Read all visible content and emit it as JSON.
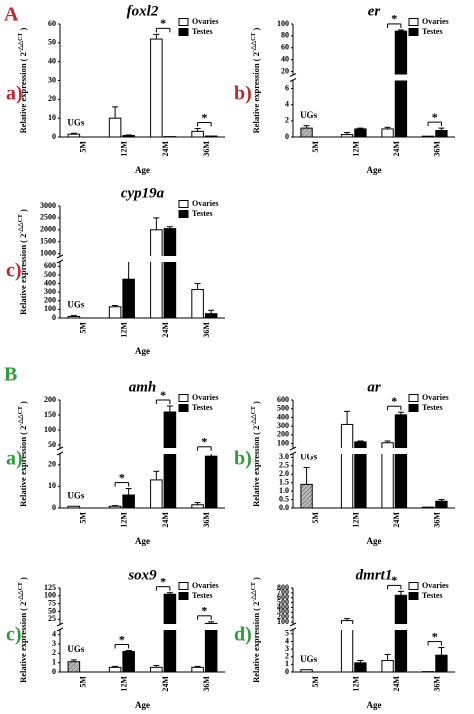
{
  "sections": [
    {
      "label": "A"
    },
    {
      "label": "B"
    }
  ],
  "chart_data": [
    {
      "type": "bar",
      "title": "foxl2",
      "panel_label": "a)",
      "categories": [
        "5M",
        "12M",
        "24M",
        "36M"
      ],
      "xlabel": "Age",
      "ylabel": "Relative expression ( 2",
      "ylabel_sup": "-△△CT",
      "ylabel_end": " )",
      "ylim": [
        0,
        60
      ],
      "yticks": [
        0,
        10,
        20,
        30,
        40,
        50,
        60
      ],
      "legend_position": "top-right",
      "significance": [
        null,
        null,
        "*",
        "*"
      ],
      "series": [
        {
          "name": "UGs",
          "legend": false,
          "hatch": false,
          "color": "#ffffff",
          "values": [
            1.5,
            null,
            null,
            null
          ],
          "errors": [
            0.5,
            null,
            null,
            null
          ]
        },
        {
          "name": "Ovaries",
          "color": "#ffffff",
          "values": [
            null,
            10,
            52,
            3
          ],
          "errors": [
            null,
            6,
            2.5,
            1.5
          ]
        },
        {
          "name": "Testes",
          "color": "#000000",
          "values": [
            null,
            0.8,
            0.2,
            0.5
          ],
          "errors": [
            null,
            0.3,
            null,
            null
          ]
        }
      ]
    },
    {
      "type": "bar",
      "title": "er",
      "panel_label": "b)",
      "categories": [
        "5M",
        "12M",
        "24M",
        "36M"
      ],
      "xlabel": "Age",
      "ylabel": "Relative expression ( 2",
      "ylabel_sup": "-△△CT",
      "ylabel_end": " )",
      "ylim": [
        0,
        100
      ],
      "yticks": [
        0,
        2,
        4,
        6,
        20,
        40,
        60,
        80,
        100
      ],
      "ybreak": [
        7,
        15
      ],
      "legend_position": "top-right",
      "significance": [
        null,
        null,
        "*",
        "*"
      ],
      "series": [
        {
          "name": "UGs",
          "legend": false,
          "hatch": true,
          "color": "#bbbbbb",
          "values": [
            1.1,
            null,
            null,
            null
          ],
          "errors": [
            0.3,
            null,
            null,
            null
          ]
        },
        {
          "name": "Ovaries",
          "color": "#ffffff",
          "values": [
            null,
            0.3,
            1.0,
            0.1
          ],
          "errors": [
            null,
            0.25,
            0.2,
            null
          ]
        },
        {
          "name": "Testes",
          "color": "#000000",
          "values": [
            null,
            1.0,
            88,
            0.8
          ],
          "errors": [
            null,
            0.1,
            2,
            0.3
          ]
        }
      ]
    },
    {
      "type": "bar",
      "title": "cyp19a",
      "panel_label": "c)",
      "categories": [
        "5M",
        "12M",
        "24M",
        "36M"
      ],
      "xlabel": "Age",
      "ylabel": "Relative expression ( 2",
      "ylabel_sup": "-△△CT",
      "ylabel_end": " )",
      "ylim": [
        0,
        3000
      ],
      "yticks": [
        0,
        100,
        200,
        300,
        400,
        500,
        600,
        1000,
        1500,
        2000,
        2500,
        3000
      ],
      "ybreak": [
        650,
        900
      ],
      "legend_position": "top-right",
      "significance": [
        null,
        null,
        null,
        null
      ],
      "series": [
        {
          "name": "UGs",
          "legend": false,
          "hatch": false,
          "color": "#ffffff",
          "values": [
            18,
            null,
            null,
            null
          ],
          "errors": [
            10,
            null,
            null,
            null
          ]
        },
        {
          "name": "Ovaries",
          "color": "#ffffff",
          "values": [
            null,
            130,
            2000,
            330
          ],
          "errors": [
            null,
            15,
            500,
            70
          ]
        },
        {
          "name": "Testes",
          "color": "#000000",
          "values": [
            null,
            450,
            2050,
            50
          ],
          "errors": [
            null,
            420,
            80,
            40
          ]
        }
      ]
    },
    {
      "type": "bar",
      "title": "amh",
      "panel_label": "a)",
      "categories": [
        "5M",
        "12M",
        "24M",
        "36M"
      ],
      "xlabel": "Age",
      "ylabel": "Relative expression ( 2",
      "ylabel_sup": "-△△CT",
      "ylabel_end": " )",
      "ylim": [
        0,
        200
      ],
      "yticks": [
        0,
        10,
        20,
        50,
        100,
        150,
        200
      ],
      "ybreak": [
        25,
        40
      ],
      "legend_position": "top-right",
      "significance": [
        null,
        "*",
        "*",
        "*"
      ],
      "series": [
        {
          "name": "UGs",
          "legend": false,
          "hatch": false,
          "color": "#ffffff",
          "values": [
            0.8,
            null,
            null,
            null
          ],
          "errors": [
            null,
            null,
            null,
            null
          ]
        },
        {
          "name": "Ovaries",
          "color": "#ffffff",
          "values": [
            null,
            0.8,
            13,
            1.5
          ],
          "errors": [
            null,
            0.3,
            4,
            1
          ]
        },
        {
          "name": "Testes",
          "color": "#000000",
          "values": [
            null,
            6,
            160,
            24
          ],
          "errors": [
            null,
            3,
            20,
            4
          ]
        }
      ]
    },
    {
      "type": "bar",
      "title": "ar",
      "panel_label": "b)",
      "categories": [
        "5M",
        "12M",
        "24M",
        "36M"
      ],
      "xlabel": "Age",
      "ylabel": "Relative expression ( 2",
      "ylabel_sup": "-△△CT",
      "ylabel_end": " )",
      "ylim": [
        0,
        600
      ],
      "yticks": [
        {
          "value": 0,
          "label": "0.0"
        },
        0.5,
        {
          "value": 1,
          "label": "1.0"
        },
        1.5,
        {
          "value": 2,
          "label": "2.0"
        },
        2.5,
        {
          "value": 3,
          "label": "3.0"
        },
        100,
        200,
        300,
        400,
        500,
        600
      ],
      "ybreak": [
        3.2,
        50
      ],
      "legend_position": "top-right",
      "significance": [
        null,
        null,
        "*",
        null
      ],
      "series": [
        {
          "name": "UGs",
          "legend": false,
          "hatch": true,
          "color": "#bbbbbb",
          "values": [
            1.4,
            null,
            null,
            null
          ],
          "errors": [
            1,
            null,
            null,
            null
          ]
        },
        {
          "name": "Ovaries",
          "color": "#ffffff",
          "values": [
            null,
            320,
            110,
            0.05
          ],
          "errors": [
            null,
            150,
            20,
            null
          ]
        },
        {
          "name": "Testes",
          "color": "#000000",
          "values": [
            null,
            120,
            430,
            0.4
          ],
          "errors": [
            null,
            10,
            30,
            0.1
          ]
        }
      ]
    },
    {
      "type": "bar",
      "title": "sox9",
      "panel_label": "c)",
      "categories": [
        "5M",
        "12M",
        "24M",
        "36M"
      ],
      "xlabel": "Age",
      "ylabel": "Relative expression ( 2",
      "ylabel_sup": "-△△CT",
      "ylabel_end": " )",
      "ylim": [
        0,
        125
      ],
      "yticks": [
        0,
        1,
        2,
        3,
        4,
        25,
        50,
        75,
        100,
        125
      ],
      "ybreak": [
        4.5,
        10
      ],
      "legend_position": "top-right",
      "significance": [
        null,
        "*",
        "*",
        "*"
      ],
      "series": [
        {
          "name": "UGs",
          "legend": false,
          "hatch": true,
          "color": "#bbbbbb",
          "values": [
            1.1,
            null,
            null,
            null
          ],
          "errors": [
            0.2,
            null,
            null,
            null
          ]
        },
        {
          "name": "Ovaries",
          "color": "#ffffff",
          "values": [
            null,
            0.5,
            0.5,
            0.5
          ],
          "errors": [
            null,
            0.1,
            0.2,
            0.1
          ]
        },
        {
          "name": "Testes",
          "color": "#000000",
          "values": [
            null,
            2.2,
            105,
            12
          ],
          "errors": [
            null,
            0.1,
            5,
            5
          ]
        }
      ]
    },
    {
      "type": "bar",
      "title": "dmrt1",
      "panel_label": "d)",
      "categories": [
        "5M",
        "12M",
        "24M",
        "36M"
      ],
      "xlabel": "Age",
      "ylabel": "Relative expression ( 2",
      "ylabel_sup": "-△△CT",
      "ylabel_end": " )",
      "ylim": [
        0,
        800
      ],
      "yticks": [
        0,
        1,
        2,
        3,
        4,
        5,
        100,
        200,
        300,
        400,
        500,
        600,
        700,
        800
      ],
      "ybreak": [
        5.5,
        60
      ],
      "legend_position": "top-right",
      "significance": [
        null,
        null,
        "*",
        "*"
      ],
      "series": [
        {
          "name": "UGs",
          "legend": false,
          "hatch": false,
          "color": "#ffffff",
          "values": [
            0.3,
            null,
            null,
            null
          ],
          "errors": [
            null,
            null,
            null,
            null
          ]
        },
        {
          "name": "Ovaries",
          "color": "#ffffff",
          "values": [
            null,
            130,
            1.5,
            0.05
          ],
          "errors": [
            null,
            40,
            0.8,
            null
          ]
        },
        {
          "name": "Testes",
          "color": "#000000",
          "values": [
            null,
            1.2,
            650,
            2.2
          ],
          "errors": [
            null,
            0.3,
            80,
            1
          ]
        }
      ]
    }
  ]
}
